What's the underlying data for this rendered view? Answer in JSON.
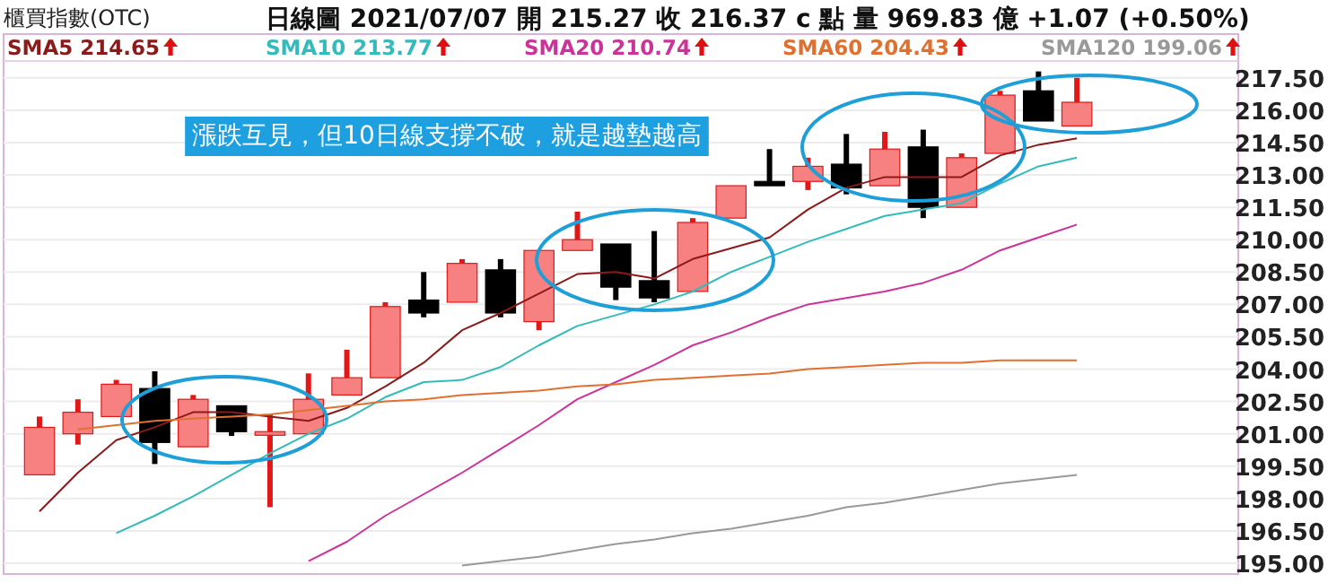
{
  "chart_data": {
    "type": "candlestick",
    "title": "櫃買指數(OTC)",
    "subtitle": "日線圖  2021/07/07  開 215.27  收 216.37 c 點  量 969.83 億  +1.07 (+0.50%)",
    "annotations": [
      "漲跌互見，但10日線支撐不破，就是越墊越高"
    ],
    "categories": [
      null,
      null,
      null,
      null,
      null,
      null,
      null,
      null,
      null,
      null,
      null,
      null,
      null,
      null,
      null,
      null,
      null,
      null,
      null,
      null,
      null,
      null,
      null,
      null,
      null,
      null,
      null,
      null
    ],
    "ohlc": [
      [
        199.1,
        201.8,
        199.1,
        201.3
      ],
      [
        201.0,
        202.6,
        200.5,
        202.0
      ],
      [
        201.8,
        203.5,
        201.8,
        203.3
      ],
      [
        203.1,
        203.9,
        199.6,
        200.6
      ],
      [
        200.4,
        202.8,
        200.4,
        202.6
      ],
      [
        202.3,
        202.3,
        200.9,
        201.1
      ],
      [
        201.0,
        201.9,
        197.6,
        201.1
      ],
      [
        201.0,
        203.8,
        201.0,
        202.6
      ],
      [
        202.8,
        204.9,
        202.8,
        203.6
      ],
      [
        203.6,
        207.1,
        203.6,
        206.9
      ],
      [
        207.2,
        208.5,
        206.4,
        206.6
      ],
      [
        207.1,
        209.1,
        207.1,
        208.9
      ],
      [
        208.6,
        209.1,
        206.4,
        206.6
      ],
      [
        206.2,
        209.5,
        205.8,
        209.5
      ],
      [
        209.5,
        211.3,
        209.5,
        210.0
      ],
      [
        209.8,
        209.8,
        207.2,
        207.8
      ],
      [
        208.1,
        210.4,
        207.1,
        207.3
      ],
      [
        207.6,
        211.0,
        207.6,
        210.8
      ],
      [
        211.0,
        212.5,
        211.0,
        212.5
      ],
      [
        212.7,
        214.2,
        212.5,
        212.5
      ],
      [
        212.7,
        213.8,
        212.3,
        213.4
      ],
      [
        213.5,
        214.9,
        212.1,
        212.4
      ],
      [
        212.5,
        215.0,
        212.5,
        214.2
      ],
      [
        214.3,
        215.1,
        211.0,
        211.5
      ],
      [
        211.5,
        214.0,
        211.5,
        213.8
      ],
      [
        214.0,
        216.9,
        214.0,
        216.7
      ],
      [
        216.9,
        217.8,
        215.5,
        215.5
      ],
      [
        215.27,
        217.5,
        215.27,
        216.37
      ]
    ],
    "series": [
      {
        "name": "SMA5 214.65",
        "type": "line",
        "color": "#8b1a1a",
        "values": [
          197.4,
          199.2,
          200.7,
          201.3,
          202.0,
          202.0,
          201.8,
          201.6,
          202.2,
          203.2,
          204.3,
          205.8,
          206.6,
          207.5,
          208.4,
          208.5,
          208.2,
          209.1,
          209.6,
          210.1,
          211.4,
          212.4,
          212.9,
          212.9,
          212.9,
          213.9,
          214.4,
          214.7
        ]
      },
      {
        "name": "SMA10 213.77",
        "type": "line",
        "color": "#33bbbb",
        "values": [
          null,
          null,
          196.4,
          197.2,
          198.1,
          199.1,
          200.1,
          201.0,
          201.7,
          202.7,
          203.4,
          203.5,
          204.1,
          205.1,
          206.0,
          206.5,
          207.0,
          207.6,
          208.5,
          209.2,
          209.9,
          210.5,
          211.1,
          211.4,
          211.7,
          212.6,
          213.4,
          213.8
        ]
      },
      {
        "name": "SMA20 210.74",
        "type": "line",
        "color": "#cc3399",
        "values": [
          null,
          null,
          null,
          null,
          null,
          null,
          null,
          195.1,
          196.0,
          197.2,
          198.2,
          199.2,
          200.3,
          201.4,
          202.6,
          203.4,
          204.2,
          205.1,
          205.7,
          206.4,
          207.0,
          207.3,
          207.6,
          208.0,
          208.6,
          209.5,
          210.1,
          210.7
        ]
      },
      {
        "name": "SMA60 204.43",
        "type": "line",
        "color": "#e07030",
        "values": [
          null,
          201.2,
          201.4,
          201.6,
          201.7,
          201.8,
          201.9,
          202.1,
          202.3,
          202.5,
          202.6,
          202.8,
          202.9,
          203.0,
          203.2,
          203.3,
          203.5,
          203.6,
          203.7,
          203.8,
          204.0,
          204.1,
          204.2,
          204.3,
          204.3,
          204.4,
          204.4,
          204.4
        ]
      },
      {
        "name": "SMA120 199.06",
        "type": "line",
        "color": "#999999",
        "values": [
          null,
          null,
          null,
          null,
          null,
          null,
          null,
          null,
          null,
          null,
          null,
          194.9,
          195.1,
          195.3,
          195.6,
          195.9,
          196.1,
          196.4,
          196.6,
          196.9,
          197.2,
          197.6,
          197.8,
          198.1,
          198.4,
          198.7,
          198.9,
          199.1
        ]
      }
    ],
    "ylim": [
      194.5,
      218.2
    ],
    "yticks": [
      {
        "value": 195,
        "label": "195.00"
      },
      {
        "value": 196.5,
        "label": "196.50"
      },
      {
        "value": 198,
        "label": "198.00"
      },
      {
        "value": 199.5,
        "label": "199.50"
      },
      {
        "value": 201,
        "label": "201.00"
      },
      {
        "value": 202.5,
        "label": "202.50"
      },
      {
        "value": 204,
        "label": "204.00"
      },
      {
        "value": 205.5,
        "label": "205.50"
      },
      {
        "value": 207,
        "label": "207.00"
      },
      {
        "value": 208.5,
        "label": "208.50"
      },
      {
        "value": 210,
        "label": "210.00"
      },
      {
        "value": 211.5,
        "label": "211.50"
      },
      {
        "value": 213,
        "label": "213.00"
      },
      {
        "value": 214.5,
        "label": "214.50"
      },
      {
        "value": 216,
        "label": "216.00"
      },
      {
        "value": 217.5,
        "label": "217.50"
      }
    ],
    "grid": "y"
  }
}
